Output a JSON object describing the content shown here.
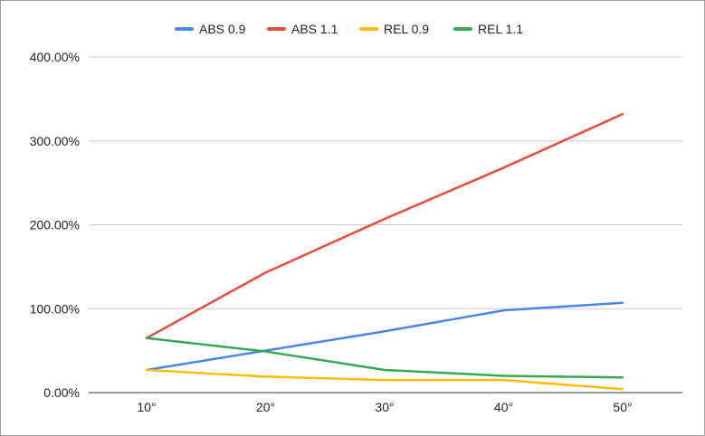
{
  "chart_data": {
    "type": "line",
    "title": "",
    "xlabel": "",
    "ylabel": "",
    "categories": [
      "10°",
      "20°",
      "30°",
      "40°",
      "50°"
    ],
    "ylim": [
      0,
      400
    ],
    "yticks": [
      0,
      100,
      200,
      300,
      400
    ],
    "ytick_labels": [
      "0.00%",
      "100.00%",
      "200.00%",
      "300.00%",
      "400.00%"
    ],
    "grid": true,
    "legend_position": "top",
    "series": [
      {
        "name": "ABS 0.9",
        "color": "#4a86e8",
        "values": [
          27,
          50,
          73,
          98,
          107
        ]
      },
      {
        "name": "ABS 1.1",
        "color": "#e74c3c",
        "values": [
          65,
          143,
          207,
          268,
          332
        ]
      },
      {
        "name": "REL 0.9",
        "color": "#fbbc04",
        "values": [
          27,
          19,
          15,
          15,
          4
        ]
      },
      {
        "name": "REL 1.1",
        "color": "#34a853",
        "values": [
          65,
          49,
          27,
          20,
          18
        ]
      }
    ]
  }
}
